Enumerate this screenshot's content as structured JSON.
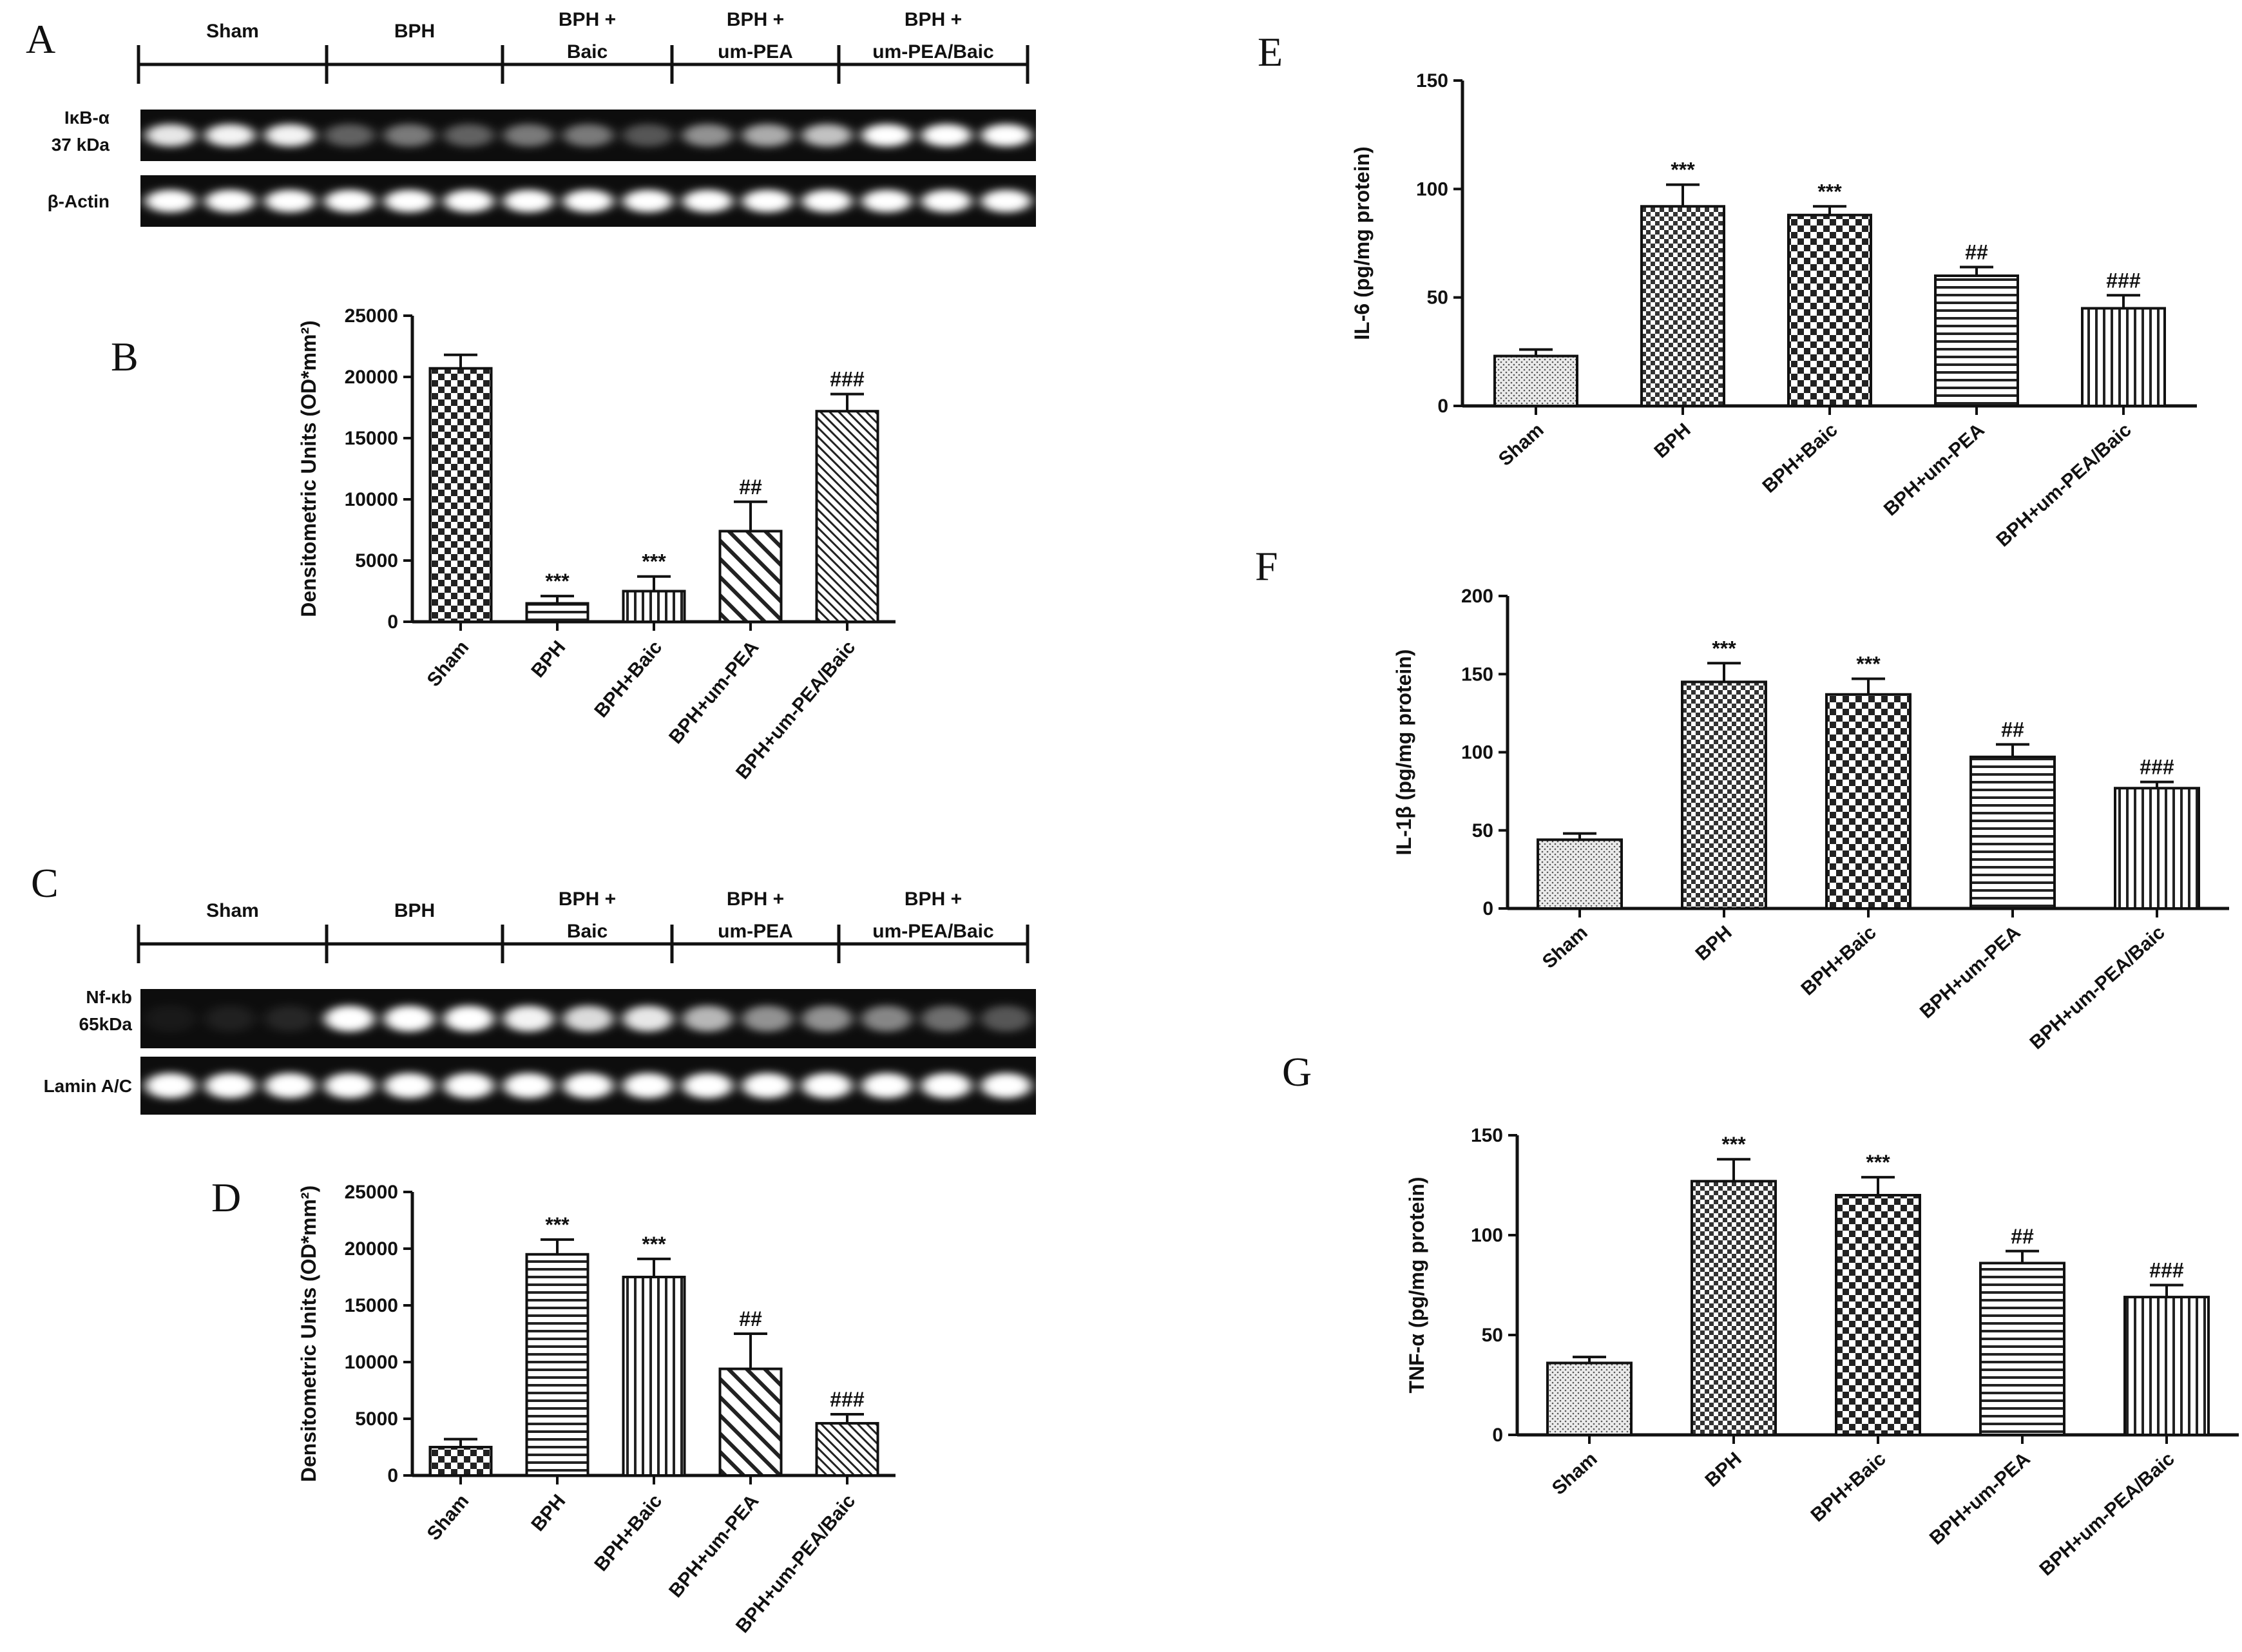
{
  "panels": {
    "A": "A",
    "B": "B",
    "C": "C",
    "D": "D",
    "E": "E",
    "F": "F",
    "G": "G"
  },
  "blots": [
    {
      "id": "A",
      "groups": [
        {
          "lines": [
            "Sham"
          ]
        },
        {
          "lines": [
            "BPH"
          ]
        },
        {
          "lines": [
            "BPH +",
            "Baic"
          ]
        },
        {
          "lines": [
            "BPH +",
            "um-PEA"
          ]
        },
        {
          "lines": [
            "BPH +",
            "um-PEA/Baic"
          ]
        }
      ],
      "rows": [
        {
          "label_lines": [
            "IκB-α",
            "37 kDa"
          ],
          "intensities": [
            0.9,
            0.95,
            0.95,
            0.35,
            0.45,
            0.35,
            0.45,
            0.45,
            0.3,
            0.55,
            0.65,
            0.75,
            1.0,
            1.0,
            1.0
          ]
        },
        {
          "label_lines": [
            "β-Actin"
          ],
          "intensities": [
            1,
            1,
            1,
            1,
            1,
            1,
            1,
            1,
            1,
            1,
            1,
            1,
            1,
            1,
            1
          ]
        }
      ]
    },
    {
      "id": "C",
      "groups": [
        {
          "lines": [
            "Sham"
          ]
        },
        {
          "lines": [
            "BPH"
          ]
        },
        {
          "lines": [
            "BPH +",
            "Baic"
          ]
        },
        {
          "lines": [
            "BPH +",
            "um-PEA"
          ]
        },
        {
          "lines": [
            "BPH +",
            "um-PEA/Baic"
          ]
        }
      ],
      "rows": [
        {
          "label_lines": [
            "Nf-κb",
            "65kDa"
          ],
          "intensities": [
            0.05,
            0.08,
            0.1,
            1.0,
            1.0,
            1.0,
            0.95,
            0.85,
            0.9,
            0.7,
            0.55,
            0.55,
            0.5,
            0.4,
            0.3
          ]
        },
        {
          "label_lines": [
            "Lamin A/C"
          ],
          "intensities": [
            1,
            1,
            1,
            1,
            1,
            1,
            1,
            1,
            1,
            1,
            1,
            1,
            1,
            1,
            1
          ]
        }
      ]
    }
  ],
  "chart_data": [
    {
      "id": "B",
      "type": "bar",
      "categories": [
        "Sham",
        "BPH",
        "BPH+Baic",
        "BPH+um-PEA",
        "BPH+um-PEA/Baic"
      ],
      "values": [
        20700,
        1500,
        2500,
        7400,
        17200
      ],
      "errors": [
        1100,
        600,
        1200,
        2400,
        1400
      ],
      "annotations": [
        "",
        "***",
        "***",
        "##",
        "###"
      ],
      "patterns": [
        "checker",
        "hstripes",
        "vstripes",
        "diag",
        "diagfine"
      ],
      "ylabel": "Densitometric Units (OD*mm²)",
      "ylim": [
        0,
        25000
      ],
      "yticks": [
        0,
        5000,
        10000,
        15000,
        20000,
        25000
      ],
      "ytick_labels": [
        "0",
        "5000",
        "10000",
        "15000",
        "20000",
        "25000"
      ]
    },
    {
      "id": "D",
      "type": "bar",
      "categories": [
        "Sham",
        "BPH",
        "BPH+Baic",
        "BPH+um-PEA",
        "BPH+um-PEA/Baic"
      ],
      "values": [
        2500,
        19500,
        17500,
        9400,
        4600
      ],
      "errors": [
        700,
        1300,
        1600,
        3100,
        800
      ],
      "annotations": [
        "",
        "***",
        "***",
        "##",
        "###"
      ],
      "patterns": [
        "checker",
        "hstripes",
        "vstripes",
        "diag",
        "diagfine"
      ],
      "ylabel": "Densitometric Units (OD*mm²)",
      "ylim": [
        0,
        25000
      ],
      "yticks": [
        0,
        5000,
        10000,
        15000,
        20000,
        25000
      ],
      "ytick_labels": [
        "0",
        "5000",
        "10000",
        "15000",
        "20000",
        "25000"
      ]
    },
    {
      "id": "E",
      "type": "bar",
      "categories": [
        "Sham",
        "BPH",
        "BPH+Baic",
        "BPH+um-PEA",
        "BPH+um-PEA/Baic"
      ],
      "values": [
        23,
        92,
        88,
        60,
        45
      ],
      "errors": [
        3,
        10,
        4,
        4,
        6
      ],
      "annotations": [
        "",
        "***",
        "***",
        "##",
        "###"
      ],
      "patterns": [
        "dots",
        "grid",
        "checker",
        "hstripes",
        "vstripes"
      ],
      "ylabel": "IL-6 (pg/mg protein)",
      "ylim": [
        0,
        150
      ],
      "yticks": [
        0,
        50,
        100,
        150
      ],
      "ytick_labels": [
        "0",
        "50",
        "100",
        "150"
      ]
    },
    {
      "id": "F",
      "type": "bar",
      "categories": [
        "Sham",
        "BPH",
        "BPH+Baic",
        "BPH+um-PEA",
        "BPH+um-PEA/Baic"
      ],
      "values": [
        44,
        145,
        137,
        97,
        77
      ],
      "errors": [
        4,
        12,
        10,
        8,
        4
      ],
      "annotations": [
        "",
        "***",
        "***",
        "##",
        "###"
      ],
      "patterns": [
        "dots",
        "grid",
        "checker",
        "hstripes",
        "vstripes"
      ],
      "ylabel": "IL-1β (pg/mg protein)",
      "ylim": [
        0,
        200
      ],
      "yticks": [
        0,
        50,
        100,
        150,
        200
      ],
      "ytick_labels": [
        "0",
        "50",
        "100",
        "150",
        "200"
      ]
    },
    {
      "id": "G",
      "type": "bar",
      "categories": [
        "Sham",
        "BPH",
        "BPH+Baic",
        "BPH+um-PEA",
        "BPH+um-PEA/Baic"
      ],
      "values": [
        36,
        127,
        120,
        86,
        69
      ],
      "errors": [
        3,
        11,
        9,
        6,
        6
      ],
      "annotations": [
        "",
        "***",
        "***",
        "##",
        "###"
      ],
      "patterns": [
        "dots",
        "grid",
        "checker",
        "hstripes",
        "vstripes"
      ],
      "ylabel": "TNF-α (pg/mg protein)",
      "ylim": [
        0,
        150
      ],
      "yticks": [
        0,
        50,
        100,
        150
      ],
      "ytick_labels": [
        "0",
        "50",
        "100",
        "150"
      ]
    }
  ]
}
